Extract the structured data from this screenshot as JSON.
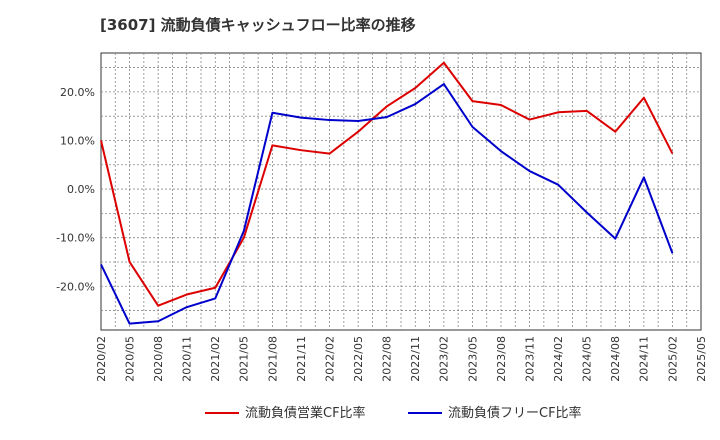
{
  "chart_data": {
    "type": "line",
    "title": "[3607]  流動負債キャッシュフロー比率の推移",
    "xlabel": "",
    "ylabel": "",
    "x": [
      "2020/02",
      "2020/05",
      "2020/08",
      "2020/11",
      "2021/02",
      "2021/05",
      "2021/08",
      "2021/11",
      "2022/02",
      "2022/05",
      "2022/08",
      "2022/11",
      "2023/02",
      "2023/05",
      "2023/08",
      "2023/11",
      "2024/02",
      "2024/05",
      "2024/08",
      "2024/11",
      "2025/02",
      "2025/05"
    ],
    "ylim": [
      -29,
      28
    ],
    "yticks": [
      20,
      10,
      0,
      -10,
      -20
    ],
    "ytick_labels": [
      "20.0%",
      "10.0%",
      "0.0%",
      "-10.0%",
      "-20.0%"
    ],
    "grid": true,
    "legend_position": "bottom",
    "series": [
      {
        "name": "流動負債営業CF比率",
        "color": "#dd0000",
        "values": [
          10.0,
          -15.0,
          -24.0,
          -21.7,
          -20.3,
          -10.0,
          9.0,
          8.0,
          7.3,
          11.8,
          17.0,
          20.8,
          26.0,
          18.1,
          17.3,
          14.3,
          15.8,
          16.1,
          11.8,
          18.8,
          7.3,
          null
        ]
      },
      {
        "name": "流動負債フリーCF比率",
        "color": "#0000cc",
        "values": [
          -15.5,
          -27.7,
          -27.2,
          -24.3,
          -22.5,
          -8.6,
          15.7,
          14.7,
          14.2,
          14.0,
          14.8,
          17.5,
          21.6,
          12.8,
          7.8,
          3.7,
          0.9,
          -4.8,
          -10.2,
          2.4,
          -13.2,
          null
        ]
      }
    ]
  }
}
